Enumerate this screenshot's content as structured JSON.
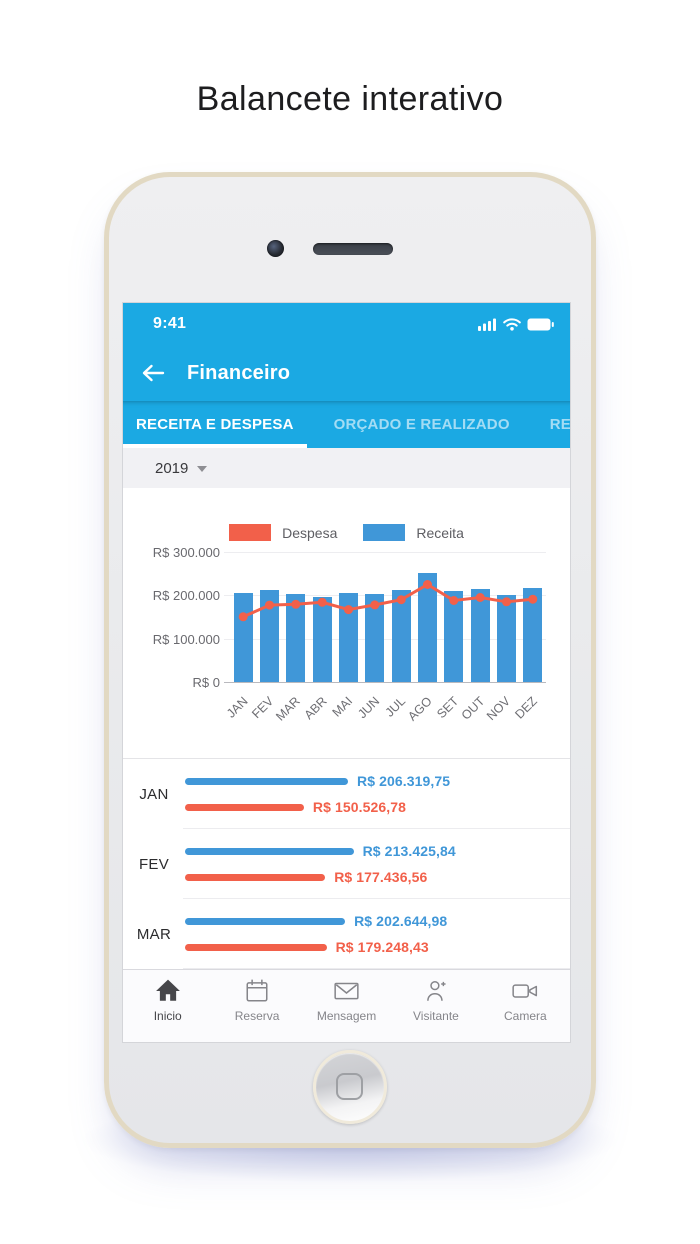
{
  "page": {
    "title": "Balancete interativo"
  },
  "phone": {
    "status_bar": {
      "time": "9:41"
    },
    "header": {
      "title": "Financeiro"
    },
    "tabs": [
      {
        "label": "RECEITA E DESPESA",
        "active": true
      },
      {
        "label": "ORÇADO E REALIZADO",
        "active": false
      },
      {
        "label": "RELATÓRIOS",
        "active": false
      }
    ],
    "year_selector": {
      "value": "2019"
    },
    "monthly_breakdown": [
      {
        "month": "JAN",
        "receita_label": "R$ 206.319,75",
        "despesa_label": "R$ 150.526,78"
      },
      {
        "month": "FEV",
        "receita_label": "R$ 213.425,84",
        "despesa_label": "R$ 177.436,56"
      },
      {
        "month": "MAR",
        "receita_label": "R$ 202.644,98",
        "despesa_label": "R$ 179.248,43"
      }
    ],
    "nav_items": [
      {
        "label": "Inicio",
        "icon": "home-icon",
        "active": true
      },
      {
        "label": "Reserva",
        "icon": "calendar-icon",
        "active": false
      },
      {
        "label": "Mensagem",
        "icon": "envelope-icon",
        "active": false
      },
      {
        "label": "Visitante",
        "icon": "visitor-add-icon",
        "active": false
      },
      {
        "label": "Camera",
        "icon": "video-camera-icon",
        "active": false
      }
    ],
    "colors": {
      "header_blue": "#1BA9E3",
      "receita_blue": "#4097D8",
      "despesa_red": "#F2604A"
    }
  },
  "chart_data": {
    "type": "bar",
    "title": "",
    "categories": [
      "JAN",
      "FEV",
      "MAR",
      "ABR",
      "MAI",
      "JUN",
      "JUL",
      "AGO",
      "SET",
      "OUT",
      "NOV",
      "DEZ"
    ],
    "series": [
      {
        "name": "Receita",
        "type": "bar",
        "color": "#4097D8",
        "values": [
          206320,
          213426,
          202645,
          197000,
          205000,
          203000,
          213000,
          252000,
          209000,
          215000,
          200000,
          218000
        ]
      },
      {
        "name": "Despesa",
        "type": "line",
        "color": "#F2604A",
        "values": [
          150527,
          177437,
          179248,
          184000,
          167000,
          178000,
          190000,
          225000,
          188000,
          195000,
          185000,
          191000
        ]
      }
    ],
    "legend": [
      "Despesa",
      "Receita"
    ],
    "yticks": [
      "R$ 300.000",
      "R$ 200.000",
      "R$ 100.000",
      "R$ 0"
    ],
    "ylim": [
      0,
      300000
    ],
    "xlabel": "",
    "ylabel": "",
    "legend_position": "top",
    "grid": true
  }
}
